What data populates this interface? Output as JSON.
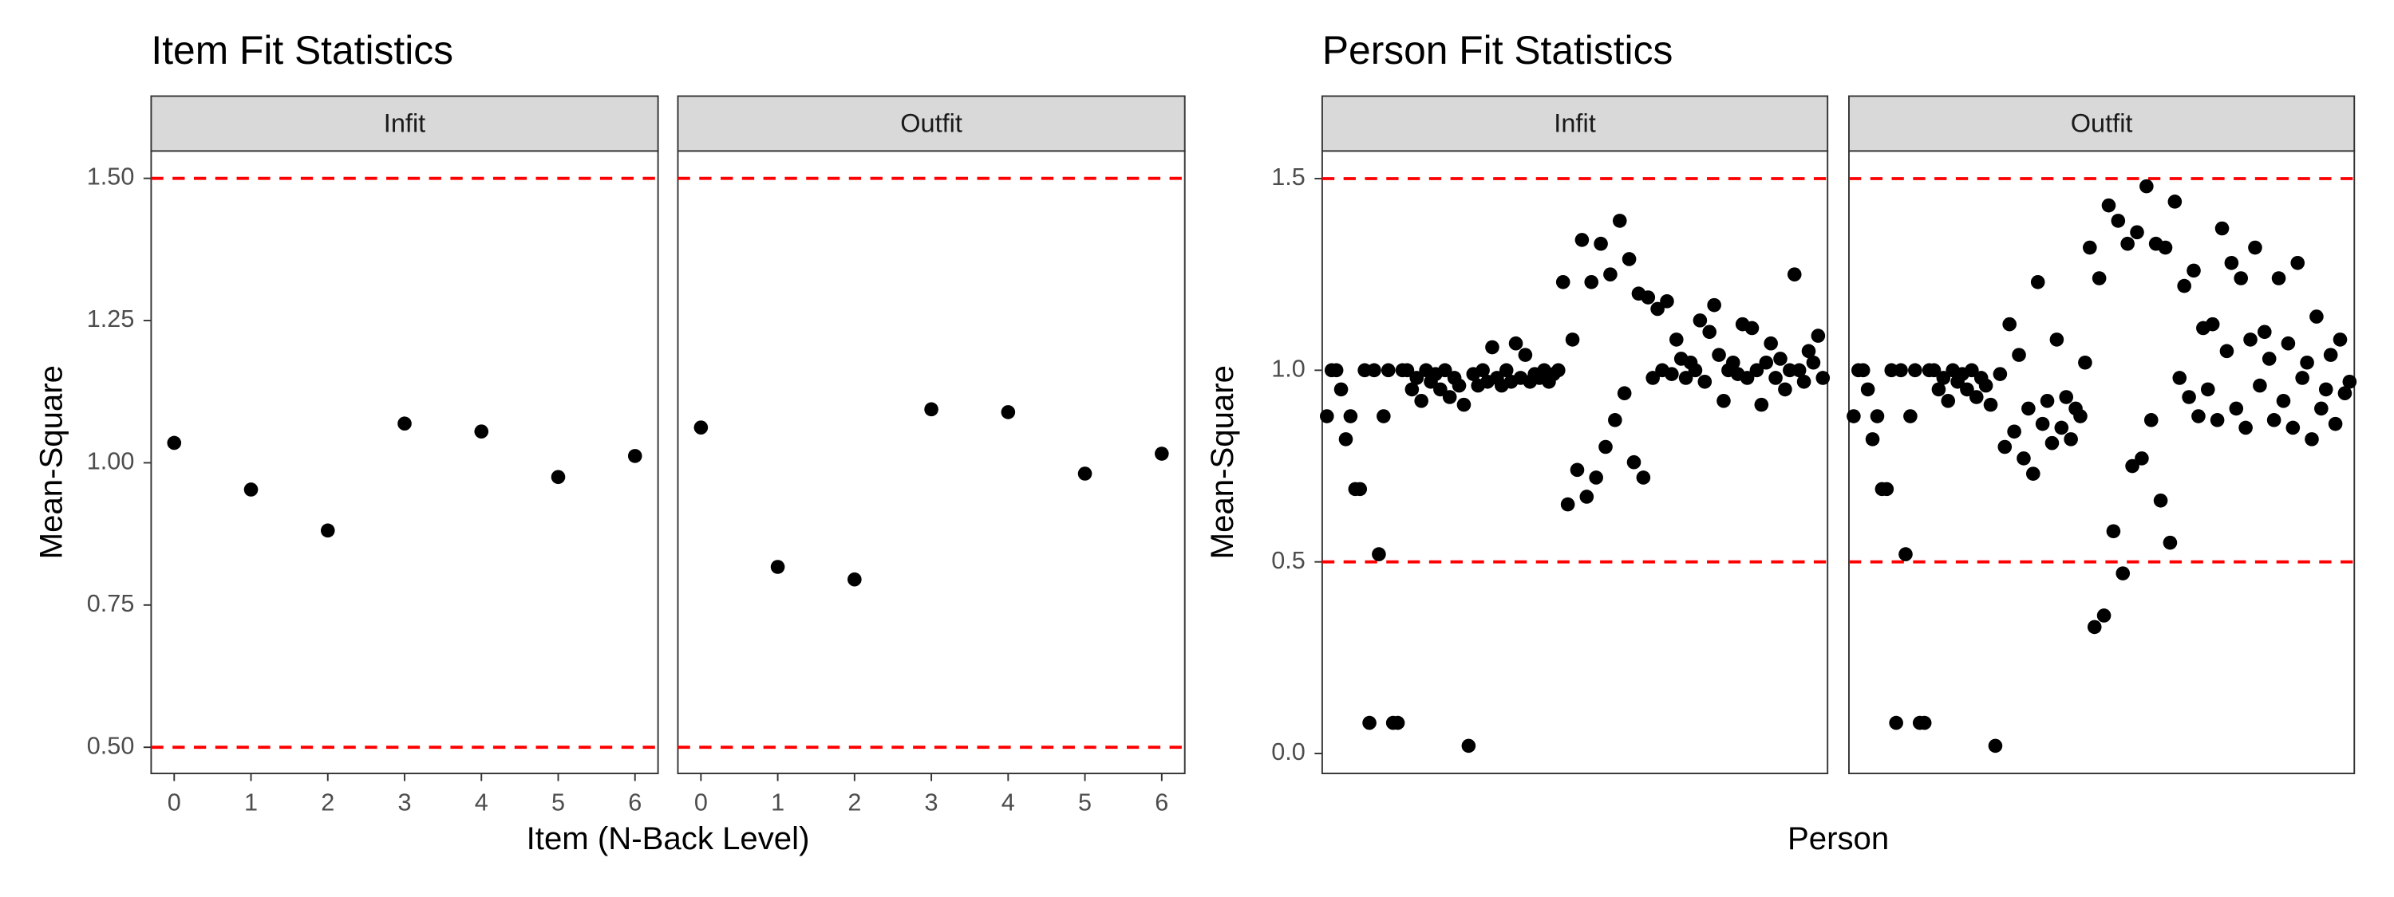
{
  "chart_data": [
    {
      "type": "scatter",
      "title": "Item Fit Statistics",
      "xlabel": "Item (N-Back Level)",
      "ylabel": "Mean-Square",
      "x": [
        0,
        1,
        2,
        3,
        4,
        5,
        6
      ],
      "xlim": [
        -0.3,
        6.3
      ],
      "xticks": [
        0,
        1,
        2,
        3,
        4,
        5,
        6
      ],
      "ylim": [
        0.454,
        1.548
      ],
      "yticks": [
        {
          "value": 0.5,
          "label": "0.50"
        },
        {
          "value": 0.75,
          "label": "0.75"
        },
        {
          "value": 1.0,
          "label": "1.00"
        },
        {
          "value": 1.25,
          "label": "1.25"
        },
        {
          "value": 1.5,
          "label": "1.50"
        }
      ],
      "hlines": [
        0.5,
        1.5
      ],
      "hline_color": "#ff0000",
      "color": "#000000",
      "facets": [
        {
          "name": "Infit",
          "values": [
            1.035,
            0.953,
            0.881,
            1.069,
            1.055,
            0.975,
            1.012
          ]
        },
        {
          "name": "Outfit",
          "values": [
            1.062,
            0.817,
            0.795,
            1.094,
            1.089,
            0.981,
            1.016
          ]
        }
      ]
    },
    {
      "type": "scatter",
      "title": "Person Fit Statistics",
      "xlabel": "Person",
      "ylabel": "Mean-Square",
      "x": [
        1,
        2,
        3,
        4,
        5,
        6,
        7,
        8,
        9,
        10,
        11,
        12,
        13,
        14,
        15,
        16,
        17,
        18,
        19,
        20,
        21,
        22,
        23,
        24,
        25,
        26,
        27,
        28,
        29,
        30,
        31,
        32,
        33,
        34,
        35,
        36,
        37,
        38,
        39,
        40,
        41,
        42,
        43,
        44,
        45,
        46,
        47,
        48,
        49,
        50,
        51,
        52,
        53,
        54,
        55,
        56,
        57,
        58,
        59,
        60,
        61,
        62,
        63,
        64,
        65,
        66,
        67,
        68,
        69,
        70,
        71,
        72,
        73,
        74,
        75,
        76,
        77,
        78,
        79,
        80,
        81,
        82,
        83,
        84,
        85,
        86,
        87,
        88,
        89,
        90,
        91,
        92,
        93,
        94,
        95,
        96,
        97,
        98,
        99,
        100,
        101,
        102,
        103,
        104,
        105,
        106
      ],
      "xlim": [
        0,
        107
      ],
      "ylim": [
        -0.052,
        1.572
      ],
      "yticks": [
        {
          "value": 0.0,
          "label": "0.0"
        },
        {
          "value": 0.5,
          "label": "0.5"
        },
        {
          "value": 1.0,
          "label": "1.0"
        },
        {
          "value": 1.5,
          "label": "1.5"
        }
      ],
      "hlines": [
        0.5,
        1.5
      ],
      "hline_color": "#ff0000",
      "color": "#000000",
      "facets": [
        {
          "name": "Infit",
          "values": [
            0.88,
            1.0,
            1.0,
            0.95,
            0.82,
            0.88,
            0.69,
            0.69,
            1.0,
            0.08,
            1.0,
            0.52,
            0.88,
            1.0,
            0.08,
            0.08,
            1.0,
            1.0,
            0.95,
            0.98,
            0.92,
            1.0,
            0.97,
            0.99,
            0.95,
            1.0,
            0.93,
            0.98,
            0.96,
            0.91,
            0.02,
            0.99,
            0.96,
            1.0,
            0.97,
            1.06,
            0.98,
            0.96,
            1.0,
            0.97,
            1.07,
            0.98,
            1.04,
            0.97,
            0.99,
            0.98,
            1.0,
            0.97,
            0.99,
            1.0,
            1.23,
            0.65,
            1.08,
            0.74,
            1.34,
            0.67,
            1.23,
            0.72,
            1.33,
            0.8,
            1.25,
            0.87,
            1.39,
            0.94,
            1.29,
            0.76,
            1.2,
            0.72,
            1.19,
            0.98,
            1.16,
            1.0,
            1.18,
            0.99,
            1.08,
            1.03,
            0.98,
            1.02,
            1.0,
            1.13,
            0.97,
            1.1,
            1.17,
            1.04,
            0.92,
            1.0,
            1.02,
            0.99,
            1.12,
            0.98,
            1.11,
            1.0,
            0.91,
            1.02,
            1.07,
            0.98,
            1.03,
            0.95,
            1.0,
            1.25,
            1.0,
            0.97,
            1.05,
            1.02,
            1.09,
            0.98
          ]
        },
        {
          "name": "Outfit",
          "values": [
            0.88,
            1.0,
            1.0,
            0.95,
            0.82,
            0.88,
            0.69,
            0.69,
            1.0,
            0.08,
            1.0,
            0.52,
            0.88,
            1.0,
            0.08,
            0.08,
            1.0,
            1.0,
            0.95,
            0.98,
            0.92,
            1.0,
            0.97,
            0.99,
            0.95,
            1.0,
            0.93,
            0.98,
            0.96,
            0.91,
            0.02,
            0.99,
            0.8,
            1.12,
            0.84,
            1.04,
            0.77,
            0.9,
            0.73,
            1.23,
            0.86,
            0.92,
            0.81,
            1.08,
            0.85,
            0.93,
            0.82,
            0.9,
            0.88,
            1.02,
            1.32,
            0.33,
            1.24,
            0.36,
            1.43,
            0.58,
            1.39,
            0.47,
            1.33,
            0.75,
            1.36,
            0.77,
            1.48,
            0.87,
            1.33,
            0.66,
            1.32,
            0.55,
            1.44,
            0.98,
            1.22,
            0.93,
            1.26,
            0.88,
            1.11,
            0.95,
            1.12,
            0.87,
            1.37,
            1.05,
            1.28,
            0.9,
            1.24,
            0.85,
            1.08,
            1.32,
            0.96,
            1.1,
            1.03,
            0.87,
            1.24,
            0.92,
            1.07,
            0.85,
            1.28,
            0.98,
            1.02,
            0.82,
            1.14,
            0.9,
            0.95,
            1.04,
            0.86,
            1.08,
            0.94,
            0.97
          ]
        }
      ]
    }
  ]
}
